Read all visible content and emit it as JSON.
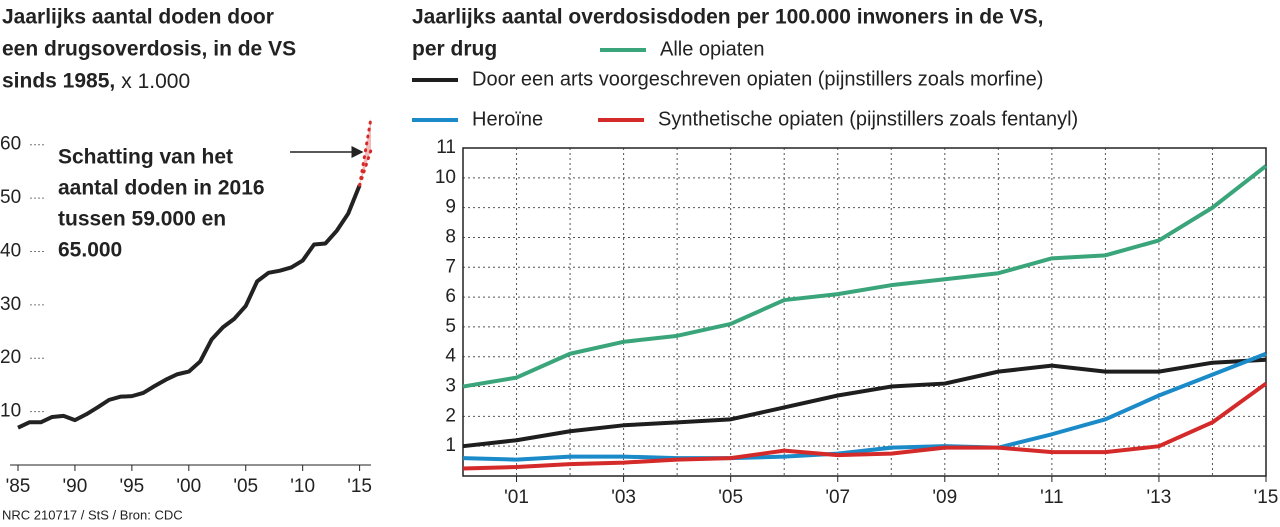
{
  "chart_data": [
    {
      "type": "line",
      "title": [
        "Jaarlijks aantal doden door",
        "een drugsoverdosis, in de VS",
        "sinds 1985,"
      ],
      "subtitle": "x 1.000",
      "annotation": [
        "Schatting van het",
        "aantal doden in 2016",
        "tussen 59.000 en",
        "65.000"
      ],
      "x": [
        1985,
        1986,
        1987,
        1988,
        1989,
        1990,
        1991,
        1992,
        1993,
        1994,
        1995,
        1996,
        1997,
        1998,
        1999,
        2000,
        2001,
        2002,
        2003,
        2004,
        2005,
        2006,
        2007,
        2008,
        2009,
        2010,
        2011,
        2012,
        2013,
        2014,
        2015
      ],
      "series": [
        {
          "color": "#222222",
          "values": [
            7,
            8,
            8,
            9,
            9.2,
            8.4,
            9.5,
            10.8,
            12.2,
            12.8,
            12.9,
            13.5,
            14.8,
            16,
            17,
            17.5,
            19.4,
            23.5,
            25.8,
            27.4,
            29.8,
            34.4,
            36,
            36.4,
            37,
            38.3,
            41.3,
            41.5,
            43.9,
            47.1,
            52.4
          ]
        }
      ],
      "estimate": {
        "x": 2016,
        "low": 59,
        "high": 65,
        "color": "#d42a2a"
      },
      "xlim": [
        1985,
        2016
      ],
      "ylim": [
        0,
        65
      ],
      "xticks": [
        {
          "value": 1985,
          "label": "'85"
        },
        {
          "value": 1990,
          "label": "'90"
        },
        {
          "value": 1995,
          "label": "'95"
        },
        {
          "value": 2000,
          "label": "'00"
        },
        {
          "value": 2005,
          "label": "'05"
        },
        {
          "value": 2010,
          "label": "'10"
        },
        {
          "value": 2015,
          "label": "'15"
        }
      ],
      "yticks": [
        10,
        20,
        30,
        40,
        50,
        60
      ],
      "source": "NRC 210717 / StS / Bron: CDC"
    },
    {
      "type": "line",
      "title": [
        "Jaarlijks aantal overdosisdoden per 100.000 inwoners in de VS,",
        "per drug"
      ],
      "x": [
        2000,
        2001,
        2002,
        2003,
        2004,
        2005,
        2006,
        2007,
        2008,
        2009,
        2010,
        2011,
        2012,
        2013,
        2014,
        2015
      ],
      "series": [
        {
          "name": "Alle opiaten",
          "color": "#3aa57a",
          "values": [
            3.0,
            3.3,
            4.1,
            4.5,
            4.7,
            5.1,
            5.9,
            6.1,
            6.4,
            6.6,
            6.8,
            7.3,
            7.4,
            7.9,
            9.0,
            10.4
          ]
        },
        {
          "name": "Door een arts voorgeschreven opiaten (pijnstillers zoals morfine)",
          "color": "#1e1e1e",
          "values": [
            1.0,
            1.2,
            1.5,
            1.7,
            1.8,
            1.9,
            2.3,
            2.7,
            3.0,
            3.1,
            3.5,
            3.7,
            3.5,
            3.5,
            3.8,
            3.9
          ]
        },
        {
          "name": "Heroïne",
          "color": "#1a8ac8",
          "values": [
            0.6,
            0.55,
            0.65,
            0.65,
            0.6,
            0.6,
            0.65,
            0.75,
            0.95,
            1.0,
            0.95,
            1.4,
            1.9,
            2.7,
            3.4,
            4.1
          ]
        },
        {
          "name": "Synthetische opiaten (pijnstillers zoals fentanyl)",
          "color": "#d42a2a",
          "values": [
            0.25,
            0.3,
            0.4,
            0.45,
            0.55,
            0.6,
            0.85,
            0.7,
            0.75,
            0.95,
            0.95,
            0.8,
            0.8,
            1.0,
            1.8,
            3.1
          ]
        }
      ],
      "xlim": [
        2000,
        2015
      ],
      "ylim": [
        0,
        11
      ],
      "xticks": [
        {
          "value": 2001,
          "label": "'01"
        },
        {
          "value": 2003,
          "label": "'03"
        },
        {
          "value": 2005,
          "label": "'05"
        },
        {
          "value": 2007,
          "label": "'07"
        },
        {
          "value": 2009,
          "label": "'09"
        },
        {
          "value": 2011,
          "label": "'11"
        },
        {
          "value": 2013,
          "label": "'13"
        },
        {
          "value": 2015,
          "label": "'15"
        }
      ],
      "yticks": [
        1,
        2,
        3,
        4,
        5,
        6,
        7,
        8,
        9,
        10,
        11
      ],
      "grid": true
    }
  ]
}
